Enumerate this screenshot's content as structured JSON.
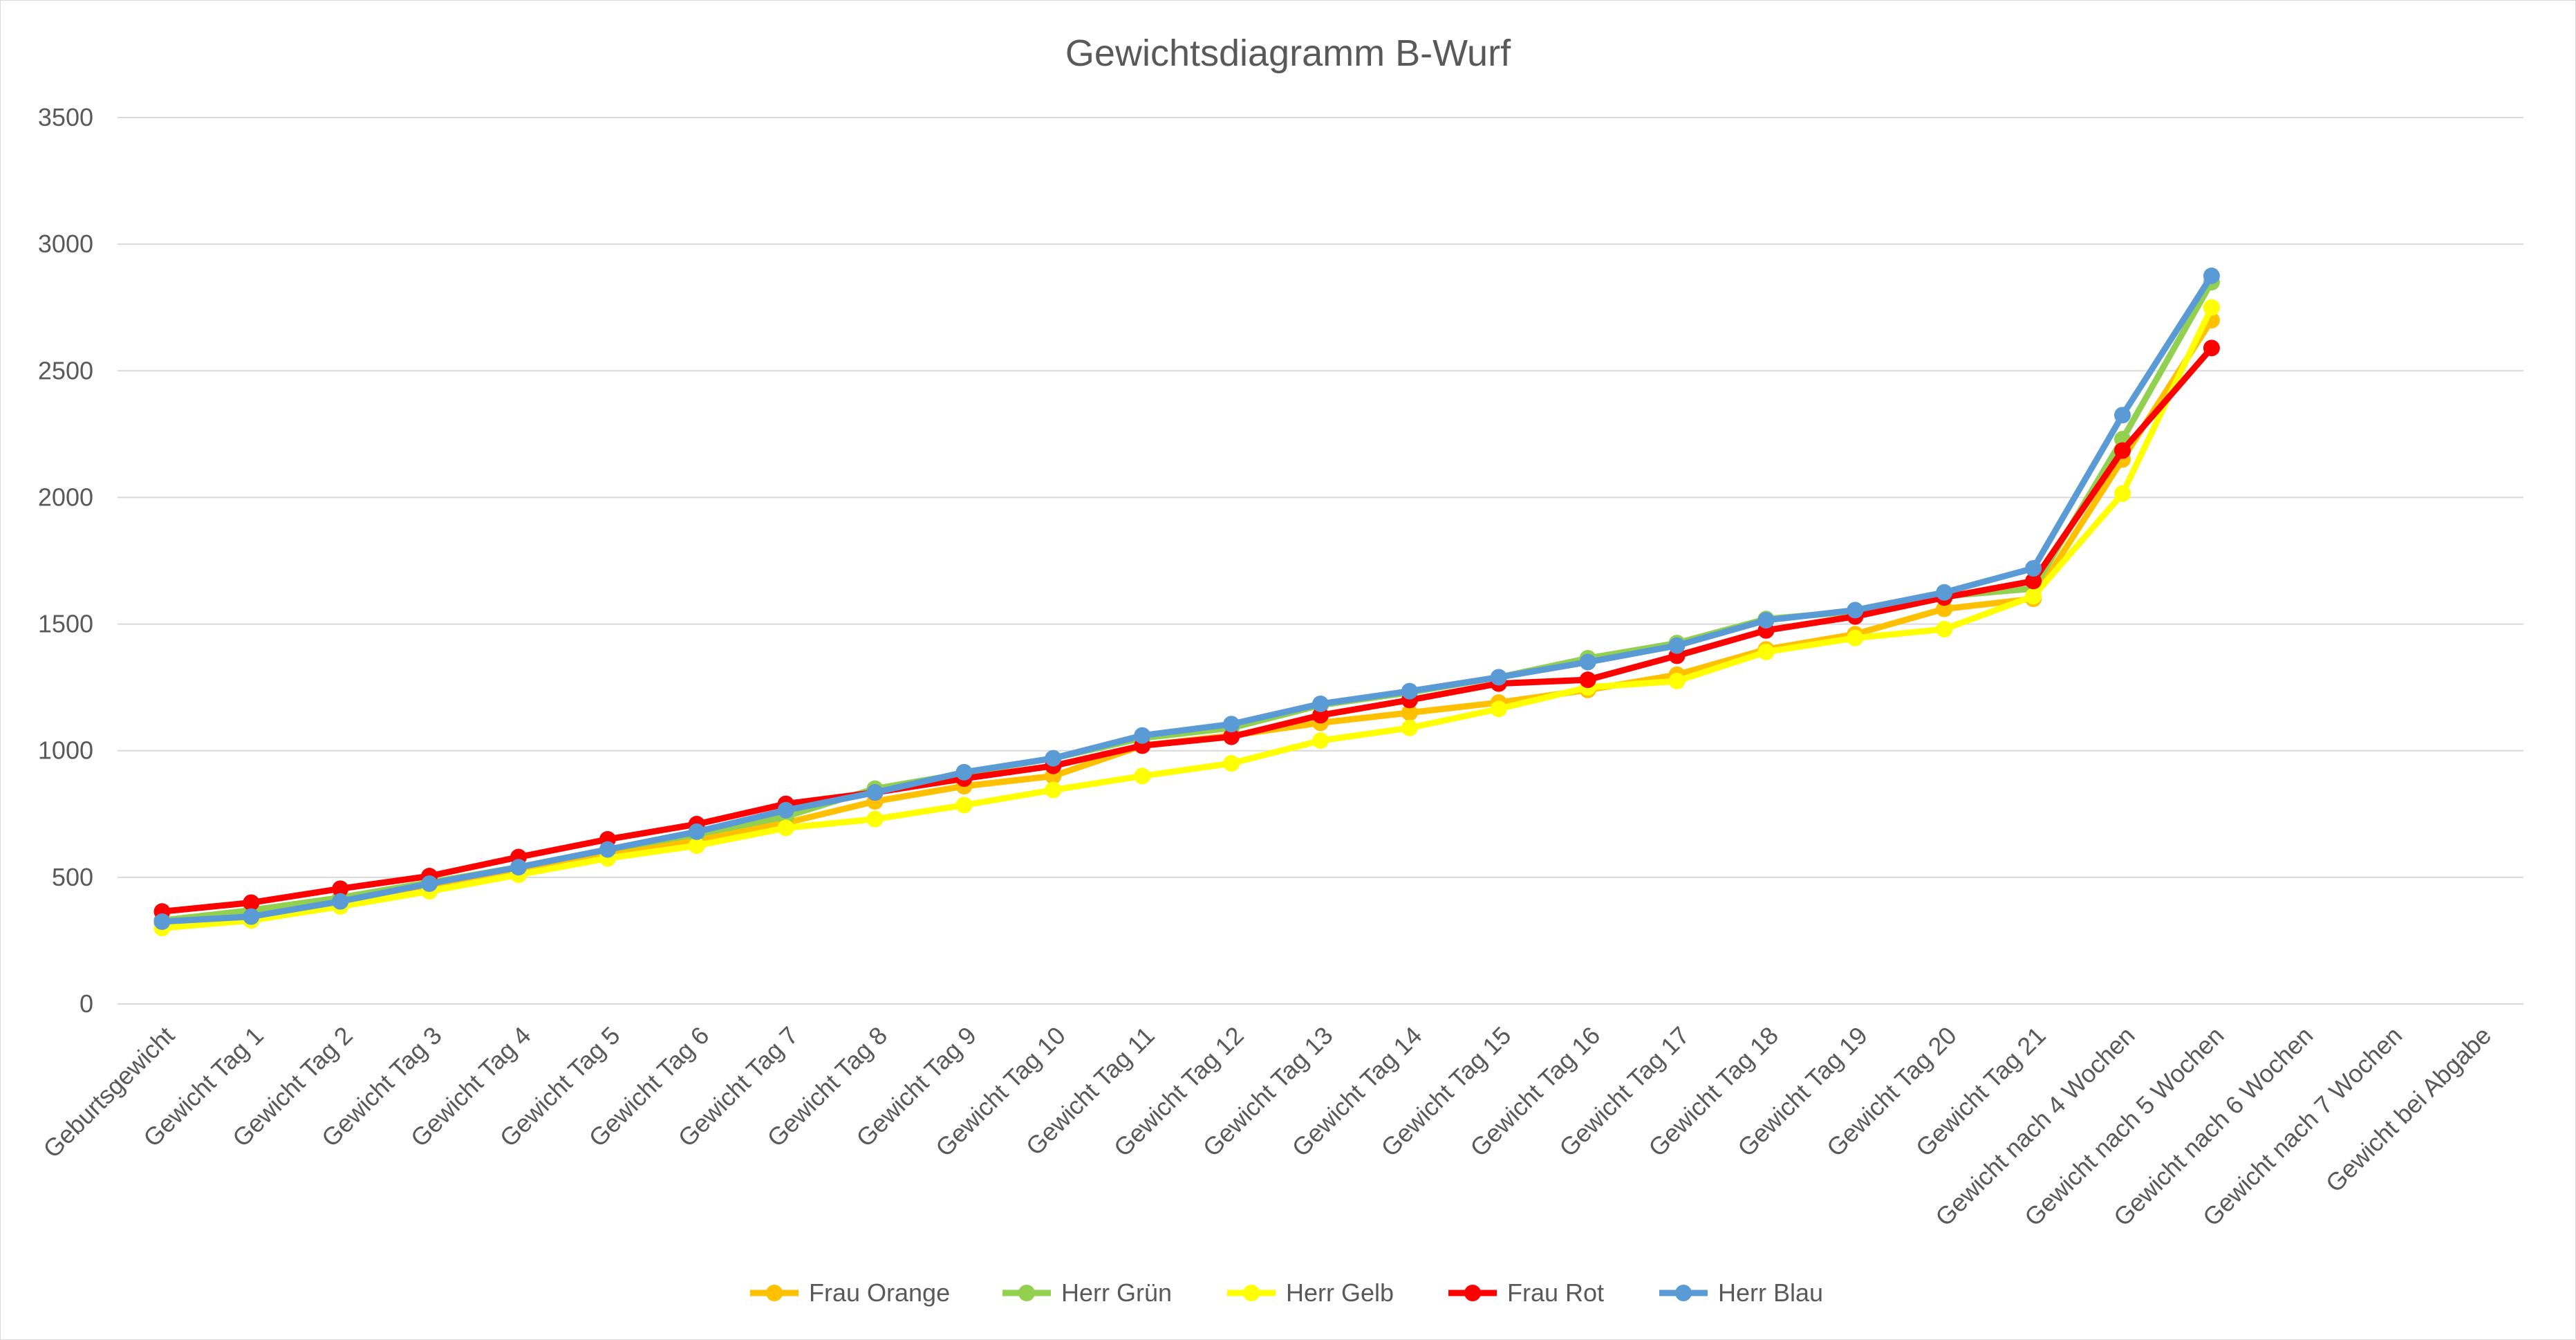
{
  "chart_data": {
    "type": "line",
    "title": "Gewichtsdiagramm B-Wurf",
    "xlabel": "",
    "ylabel": "",
    "ylim": [
      0,
      3500
    ],
    "yticks": [
      0,
      500,
      1000,
      1500,
      2000,
      2500,
      3000,
      3500
    ],
    "grid": true,
    "legend_position": "bottom",
    "categories": [
      "Geburtsgewicht",
      "Gewicht Tag 1",
      "Gewicht Tag 2",
      "Gewicht Tag 3",
      "Gewicht Tag 4",
      "Gewicht Tag 5",
      "Gewicht Tag 6",
      "Gewicht Tag 7",
      "Gewicht Tag 8",
      "Gewicht Tag 9",
      "Gewicht Tag 10",
      "Gewicht Tag 11",
      "Gewicht Tag 12",
      "Gewicht Tag 13",
      "Gewicht Tag 14",
      "Gewicht Tag 15",
      "Gewicht Tag 16",
      "Gewicht Tag 17",
      "Gewicht Tag 18",
      "Gewicht Tag 19",
      "Gewicht Tag 20",
      "Gewicht Tag 21",
      "Gewicht nach 4 Wochen",
      "Gewicht nach 5 Wochen",
      "Gewicht nach 6 Wochen",
      "Gewicht nach 7 Wochen",
      "Gewicht bei Abgabe"
    ],
    "series": [
      {
        "name": "Frau Orange",
        "color": "#FFC000",
        "values": [
          320,
          355,
          410,
          470,
          535,
          600,
          650,
          715,
          800,
          860,
          900,
          1020,
          1060,
          1110,
          1150,
          1190,
          1240,
          1300,
          1400,
          1460,
          1560,
          1600,
          2150,
          2700,
          null,
          null,
          null
        ]
      },
      {
        "name": "Herr Grün",
        "color": "#92D050",
        "values": [
          330,
          370,
          420,
          480,
          540,
          610,
          670,
          740,
          850,
          910,
          970,
          1050,
          1090,
          1180,
          1230,
          1290,
          1365,
          1425,
          1520,
          1550,
          1610,
          1640,
          2230,
          2850,
          null,
          null,
          null
        ]
      },
      {
        "name": "Herr Gelb",
        "color": "#FFFF00",
        "values": [
          300,
          330,
          385,
          445,
          510,
          575,
          625,
          695,
          730,
          785,
          845,
          900,
          950,
          1040,
          1090,
          1165,
          1250,
          1275,
          1390,
          1445,
          1480,
          1610,
          2015,
          2750,
          null,
          null,
          null
        ]
      },
      {
        "name": "Frau Rot",
        "color": "#FF0000",
        "values": [
          365,
          400,
          455,
          505,
          580,
          650,
          710,
          790,
          835,
          890,
          940,
          1020,
          1055,
          1140,
          1200,
          1265,
          1280,
          1375,
          1475,
          1530,
          1605,
          1670,
          2185,
          2590,
          null,
          null,
          null
        ]
      },
      {
        "name": "Herr Blau",
        "color": "#5B9BD5",
        "values": [
          325,
          345,
          405,
          475,
          540,
          610,
          680,
          765,
          835,
          915,
          970,
          1060,
          1105,
          1185,
          1235,
          1290,
          1350,
          1415,
          1515,
          1555,
          1625,
          1720,
          2325,
          2875,
          null,
          null,
          null
        ]
      }
    ]
  }
}
